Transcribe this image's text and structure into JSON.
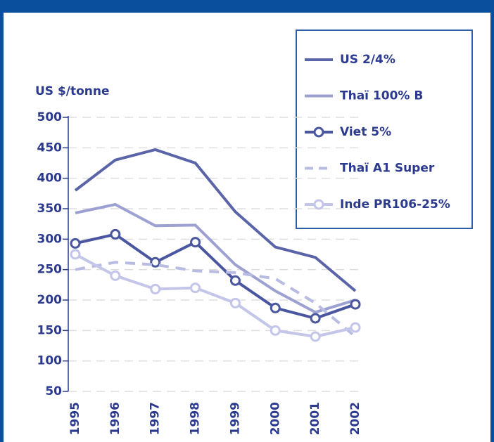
{
  "chart_data": {
    "type": "line",
    "y_label": "US $/tonne",
    "x": [
      "1995",
      "1996",
      "1997",
      "1998",
      "1999",
      "2000",
      "2001",
      "2002"
    ],
    "ylim": [
      50,
      500
    ],
    "yticks": [
      50,
      100,
      150,
      200,
      250,
      300,
      350,
      400,
      450,
      500
    ],
    "grid": true,
    "series": [
      {
        "name": "US 2/4%",
        "color": "#5a64a8",
        "values": [
          380,
          430,
          447,
          425,
          345,
          287,
          270,
          215
        ]
      },
      {
        "name": "Thaï 100% B",
        "color": "#9ca1d2",
        "values": [
          343,
          357,
          322,
          323,
          258,
          215,
          180,
          200
        ]
      },
      {
        "name": "Viet 5%",
        "color": "#4a56a0",
        "marker": "circle",
        "values": [
          293,
          308,
          262,
          295,
          232,
          187,
          170,
          193
        ]
      },
      {
        "name": "Thaï A1 Super",
        "color": "#b8bce2",
        "dashed": true,
        "values": [
          250,
          262,
          258,
          248,
          245,
          235,
          195,
          140
        ]
      },
      {
        "name": "Inde PR106-25%",
        "color": "#c3c6e8",
        "marker": "circle",
        "values": [
          275,
          240,
          218,
          220,
          195,
          150,
          140,
          155
        ]
      }
    ]
  }
}
